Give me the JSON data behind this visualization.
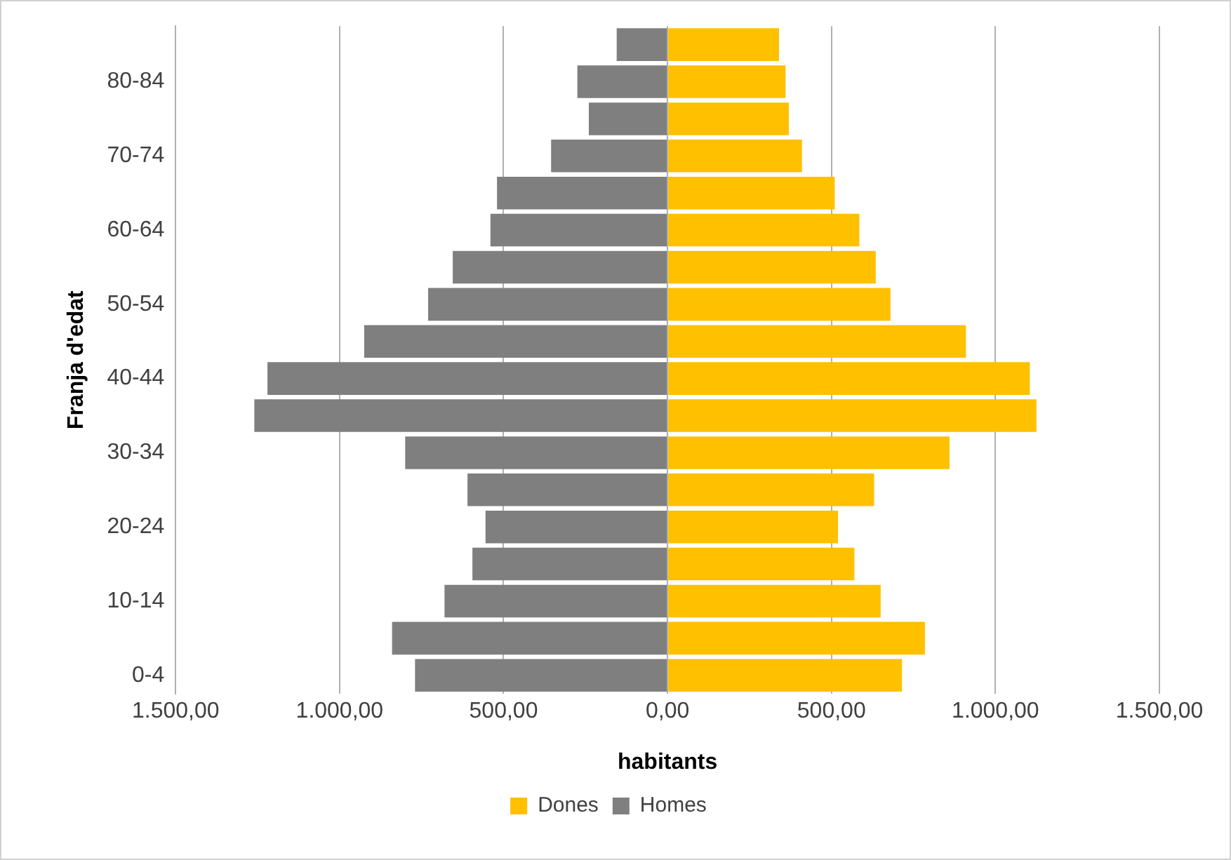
{
  "chart_data": {
    "type": "bar",
    "orientation": "horizontal",
    "stacked": true,
    "categories": [
      null,
      "80-84",
      null,
      "70-74",
      null,
      "60-64",
      null,
      "50-54",
      null,
      "40-44",
      null,
      "30-34",
      null,
      "20-24",
      null,
      "10-14",
      null,
      "0-4"
    ],
    "series": [
      {
        "name": "Dones",
        "color": "#ffc000",
        "values": [
          340,
          360,
          370,
          410,
          510,
          585,
          635,
          680,
          910,
          1105,
          1125,
          860,
          630,
          520,
          570,
          650,
          785,
          715
        ]
      },
      {
        "name": "Homes",
        "color": "#7f7f7f",
        "values": [
          -155,
          -275,
          -240,
          -355,
          -520,
          -540,
          -655,
          -730,
          -925,
          -1220,
          -1260,
          -800,
          -610,
          -555,
          -595,
          -680,
          -840,
          -770
        ]
      }
    ],
    "xlim": [
      -1500,
      1500
    ],
    "xticks": [
      {
        "value": -1500,
        "label": "1.500,00"
      },
      {
        "value": -1000,
        "label": "1.000,00"
      },
      {
        "value": -500,
        "label": "500,00"
      },
      {
        "value": 0,
        "label": "0,00"
      },
      {
        "value": 500,
        "label": "500,00"
      },
      {
        "value": 1000,
        "label": "1.000,00"
      },
      {
        "value": 1500,
        "label": "1.500,00"
      }
    ],
    "xlabel": "habitants",
    "ylabel": "Franja d'edat",
    "grid": "x",
    "legend": "bottom"
  }
}
